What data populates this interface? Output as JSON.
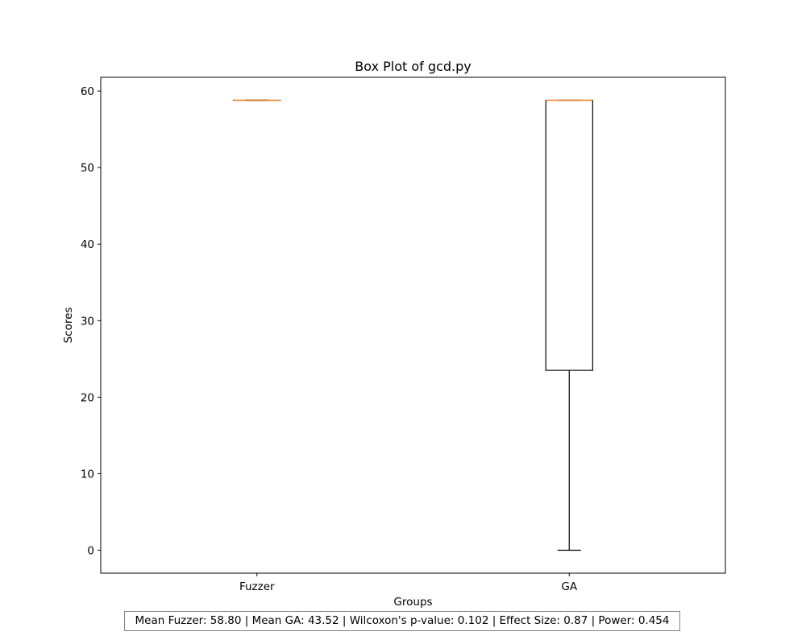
{
  "chart_data": {
    "type": "box",
    "title": "Box Plot of gcd.py",
    "xlabel": "Groups",
    "ylabel": "Scores",
    "ylim": [
      -3,
      61.8
    ],
    "yticks": [
      0,
      10,
      20,
      30,
      40,
      50,
      60
    ],
    "grid": false,
    "categories": [
      "Fuzzer",
      "GA"
    ],
    "boxes": [
      {
        "name": "Fuzzer",
        "whisker_low": 58.8,
        "q1": 58.8,
        "median": 58.8,
        "q3": 58.8,
        "whisker_high": 58.8
      },
      {
        "name": "GA",
        "whisker_low": 0,
        "q1": 23.5,
        "median": 58.8,
        "q3": 58.8,
        "whisker_high": 58.8
      }
    ],
    "colors": {
      "box": "#000000",
      "median": "#ff7f0e"
    }
  },
  "annotation": {
    "text": "Mean Fuzzer: 58.80 | Mean GA: 43.52 | Wilcoxon's p-value: 0.102 | Effect Size: 0.87 | Power: 0.454"
  }
}
